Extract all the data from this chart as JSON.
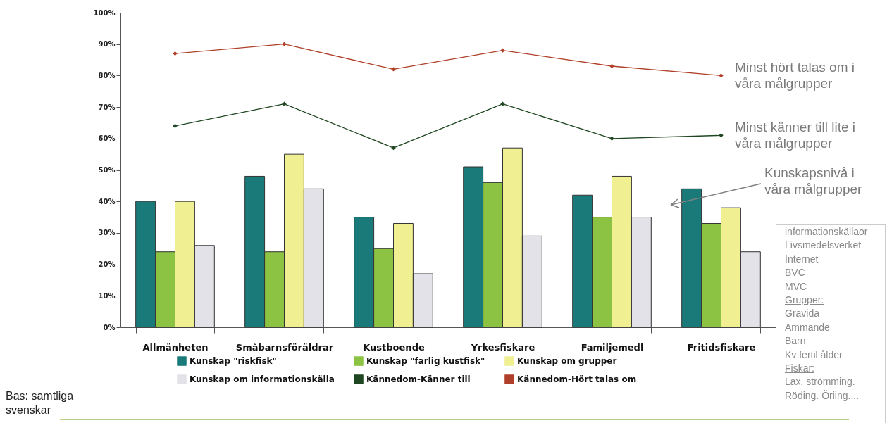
{
  "chart_data": {
    "type": "bar",
    "categories": [
      "Allmänheten",
      "Småbarnsföräldrar",
      "Kustboende",
      "Yrkesfiskare",
      "Familjemedl",
      "Fritidsfiskare"
    ],
    "series": [
      {
        "name": "Kunskap \"riskfisk\"",
        "color": "#1a7a7a",
        "values": [
          40,
          48,
          35,
          51,
          42,
          44
        ]
      },
      {
        "name": "Kunskap \"farlig kustfisk\"",
        "color": "#8cc342",
        "values": [
          24,
          24,
          25,
          46,
          35,
          33
        ]
      },
      {
        "name": "Kunskap om grupper",
        "color": "#f0ef92",
        "values": [
          40,
          55,
          33,
          57,
          48,
          38
        ]
      },
      {
        "name": "Kunskap om informationskälla",
        "color": "#e2e2e8",
        "values": [
          26,
          44,
          17,
          29,
          35,
          24
        ]
      },
      {
        "name": "Kännedom-Känner till",
        "color": "#1e4620",
        "type": "line",
        "values": [
          64,
          71,
          57,
          71,
          60,
          61
        ]
      },
      {
        "name": "Kännedom-Hört talas om",
        "color": "#b0402a",
        "type": "line",
        "values": [
          87,
          90,
          82,
          88,
          83,
          80
        ]
      }
    ],
    "ylim": [
      0,
      100
    ],
    "yticks": [
      {
        "value": 0,
        "label": "0%"
      },
      {
        "value": 10,
        "label": "10%"
      },
      {
        "value": 20,
        "label": "20%"
      },
      {
        "value": 30,
        "label": "30%"
      },
      {
        "value": 40,
        "label": "40%"
      },
      {
        "value": 50,
        "label": "50%"
      },
      {
        "value": 60,
        "label": "60%"
      },
      {
        "value": 70,
        "label": "70%"
      },
      {
        "value": 80,
        "label": "80%"
      },
      {
        "value": 90,
        "label": "90%"
      },
      {
        "value": 100,
        "label": "100%"
      }
    ],
    "marker": "diamond",
    "legend": "bottom",
    "annotations": [
      "Minst hört talas om i våra målgrupper",
      "Minst känner till lite i våra målgrupper",
      "Kunskapsnivå  i våra målgrupper",
      "Bas: samtliga svenskar",
      "informationskällaor",
      "Livsmedelsverket",
      "Internet",
      "BVC",
      "MVC",
      "Grupper:",
      "Gravida",
      "Ammande",
      "Barn",
      "Kv fertil ålder",
      "Fiskar:",
      "Lax, strömming.",
      "Röding. Öriing...."
    ]
  }
}
